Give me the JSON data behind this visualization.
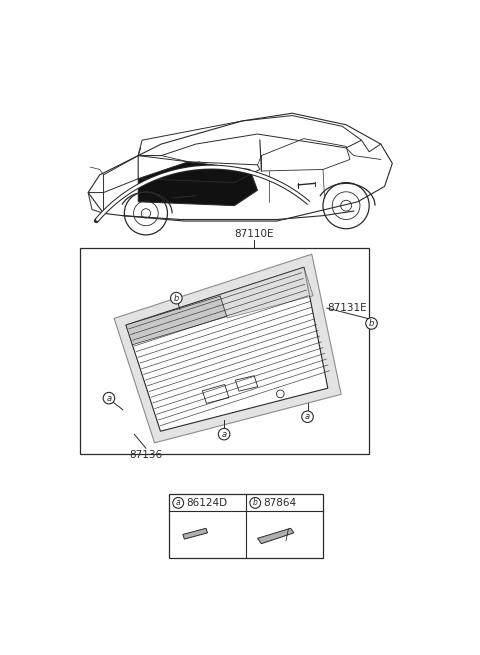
{
  "bg_color": "#ffffff",
  "line_color": "#2a2a2a",
  "gray_fill": "#c8c8c8",
  "label_87110E": "87110E",
  "label_87131E": "87131E",
  "label_87136": "87136",
  "label_a": "a",
  "label_b": "b",
  "label_86124D": "86124D",
  "label_87864": "87864",
  "font_size": 7.5
}
